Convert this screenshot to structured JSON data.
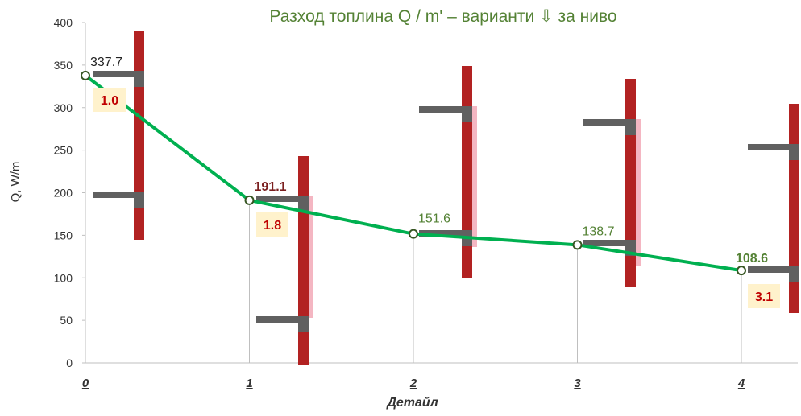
{
  "chart_data": {
    "type": "line",
    "title": "Разход топлина Q / m' – варианти ⇩ за ниво",
    "xlabel": "Детайл",
    "ylabel": "Q, W/m",
    "ylim": [
      0,
      400
    ],
    "xlim": [
      0,
      4
    ],
    "yticks": [
      "0",
      "50",
      "100",
      "150",
      "200",
      "250",
      "300",
      "350",
      "400"
    ],
    "xticks": [
      "0",
      "1",
      "2",
      "3",
      "4"
    ],
    "grid": false,
    "series": [
      {
        "values": [
          337.7,
          191.1,
          151.6,
          138.7,
          108.6
        ],
        "x": [
          0,
          1,
          2,
          3,
          4
        ],
        "color": "#00b050",
        "data_labels": [
          "337.7",
          "191.1",
          "151.6",
          "138.7",
          "108.6"
        ]
      }
    ],
    "ratio_labels": [
      {
        "x": 0,
        "text": "1.0"
      },
      {
        "x": 1,
        "text": "1.8"
      },
      {
        "x": 4,
        "text": "3.1"
      }
    ],
    "colors": {
      "line": "#00b050",
      "wall": "#b22222",
      "slab": "#606060",
      "insulation": "#f4b6c2",
      "ratio_box": "#fff2cc",
      "ratio_text": "#c00000",
      "title": "#548235",
      "label_dark": "#7b1f1f",
      "label_green": "#548235",
      "label_black": "#222222"
    }
  }
}
